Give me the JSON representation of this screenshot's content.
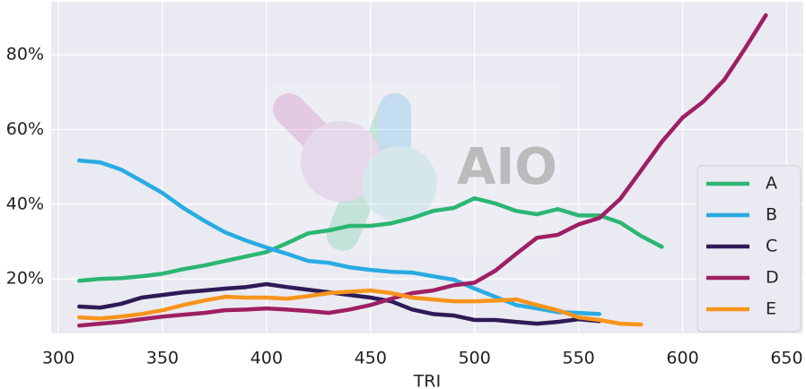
{
  "chart_data": {
    "type": "line",
    "x_label": "TRI",
    "watermark": "AIO",
    "x": [
      310,
      320,
      330,
      340,
      350,
      360,
      370,
      380,
      390,
      400,
      410,
      420,
      430,
      440,
      450,
      460,
      470,
      480,
      490,
      500,
      510,
      520,
      530,
      540,
      550,
      560,
      570,
      580,
      590,
      600,
      610,
      620,
      630,
      640
    ],
    "series": [
      {
        "name": "A",
        "color": "#2bb673",
        "values": [
          19.5,
          20,
          20.2,
          20.7,
          21.4,
          22.6,
          23.6,
          24.8,
          26,
          27.2,
          29.6,
          32.2,
          33,
          34.2,
          34.2,
          34.9,
          36.3,
          38.2,
          39,
          41.6,
          40.2,
          38.2,
          37.3,
          38.7,
          37,
          37,
          35.1,
          31.5,
          28.6,
          null,
          null,
          null,
          null,
          null
        ]
      },
      {
        "name": "B",
        "color": "#29abe2",
        "values": [
          51.7,
          51.2,
          49.3,
          46.2,
          43,
          39,
          35.6,
          32.5,
          30.3,
          28.4,
          26.7,
          24.8,
          24.3,
          23.1,
          22.4,
          21.9,
          21.7,
          20.7,
          19.8,
          17.4,
          15.2,
          13,
          12.1,
          11.1,
          10.9,
          10.6,
          null,
          null,
          null,
          null,
          null,
          null,
          null,
          null
        ]
      },
      {
        "name": "C",
        "color": "#2e1a57",
        "values": [
          12.6,
          12.3,
          13.3,
          15,
          15.7,
          16.4,
          16.9,
          17.4,
          17.8,
          18.6,
          17.8,
          17.1,
          16.4,
          15.7,
          15,
          14,
          11.8,
          10.6,
          10.2,
          9,
          9,
          8.5,
          8,
          8.5,
          9.2,
          8.7,
          null,
          null,
          null,
          null,
          null,
          null,
          null,
          null
        ]
      },
      {
        "name": "D",
        "color": "#9e1f63",
        "values": [
          7.5,
          8,
          8.5,
          9.2,
          9.9,
          10.4,
          10.9,
          11.6,
          11.8,
          12.1,
          11.8,
          11.4,
          10.9,
          11.8,
          13,
          14.7,
          16.2,
          16.9,
          18.3,
          19,
          22.2,
          26.7,
          31,
          31.8,
          34.6,
          36.3,
          41.4,
          49,
          56.7,
          63.2,
          67.5,
          73.3,
          81.7,
          90.6
        ]
      },
      {
        "name": "E",
        "color": "#f7941d",
        "values": [
          9.7,
          9.4,
          9.9,
          10.6,
          11.6,
          13,
          14.2,
          15.2,
          15,
          15,
          14.7,
          15.4,
          16.2,
          16.6,
          16.9,
          16.2,
          15,
          14.5,
          14,
          14,
          14.2,
          14.5,
          13,
          11.6,
          9.7,
          9,
          8,
          7.8,
          null,
          null,
          null,
          null,
          null,
          null
        ]
      }
    ],
    "xlim": [
      296.5,
      658
    ],
    "xticks": [
      300,
      350,
      400,
      450,
      500,
      550,
      600,
      650
    ],
    "ylim": [
      5.4,
      94.2
    ],
    "yticks": [
      {
        "value": 20,
        "label": "20%"
      },
      {
        "value": 40,
        "label": "40%"
      },
      {
        "value": 60,
        "label": "60%"
      },
      {
        "value": 80,
        "label": "80%"
      }
    ],
    "grid": true,
    "legend": "lower right"
  }
}
